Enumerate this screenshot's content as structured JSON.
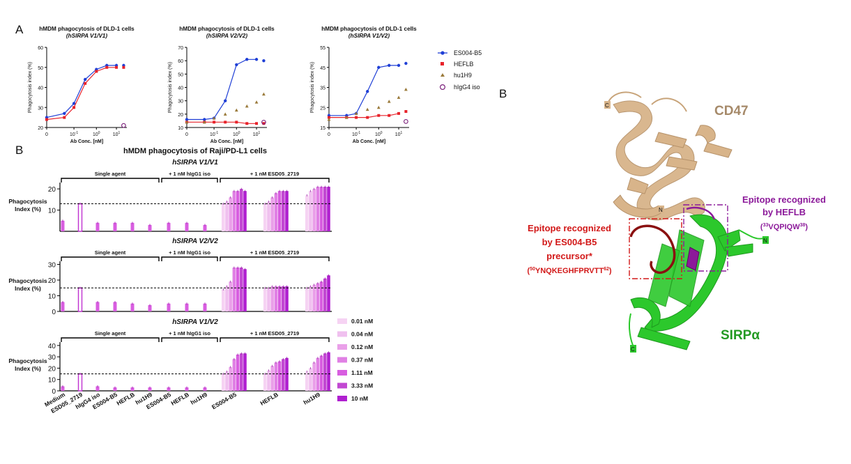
{
  "figure": {
    "panel_a_letter": "A",
    "panel_b_letter": "B",
    "panel_b2_letter": "B"
  },
  "curve_panels": [
    {
      "title": "hMDM phagocytosis of DLD-1 cells",
      "subtitle": "(hSIRPA V1/V1)",
      "ylabel": "Phagocytosis index (%)",
      "xlabel": "Ab Conc. [nM]",
      "yticks": [
        20,
        30,
        40,
        50,
        60
      ],
      "ylim": [
        20,
        60
      ]
    },
    {
      "title": "hMDM phagocytosis of DLD-1 cells",
      "subtitle": "(hSIRPA V2/V2)",
      "ylabel": "Phagocytosis index (%)",
      "xlabel": "Ab Conc. [nM]",
      "yticks": [
        10,
        20,
        30,
        40,
        50,
        60,
        70
      ],
      "ylim": [
        10,
        70
      ]
    },
    {
      "title": "hMDM phagocytosis of DLD-1 cells",
      "subtitle": "(hSIRPA V1/V2)",
      "ylabel": "Phagocytosis index (%)",
      "xlabel": "Ab Conc. [nM]",
      "yticks": [
        15,
        25,
        35,
        45,
        55
      ],
      "ylim": [
        15,
        55
      ]
    }
  ],
  "curve_xticks": [
    "0",
    "10-1",
    "100",
    "101"
  ],
  "curve_legend": [
    "ES004-B5",
    "HEFLB",
    "hu1H9",
    "hIgG4 iso"
  ],
  "bar_section": {
    "title": "hMDM phagocytosis of Raji/PD-L1 cells",
    "ylabel_line1": "Phagocytosis",
    "ylabel_line2": "Index (%)",
    "bracket_single": "Single agent",
    "bracket_hig": "+ 1 nM hIgG1 iso",
    "bracket_esd": "+ 1 nM ESD05_2719",
    "xlabels": [
      "Medium",
      "ESD05_2719",
      "hIgG4 iso",
      "ES004-B5",
      "HEFLB",
      "hu1H9",
      "ES004-B5",
      "HEFLB",
      "hu1H9",
      "ES004-B5",
      "HEFLB",
      "hu1H9"
    ],
    "legend": [
      "0.01 nM",
      "0.04 nM",
      "0.12 nM",
      "0.37 nM",
      "1.11 nM",
      "3.33 nM",
      "10 nM"
    ]
  },
  "structure": {
    "cd47_label": "CD47",
    "sirpa_label": "SIRPα",
    "heflb_epitope_line1": "Epitope recognized",
    "heflb_epitope_line2": "by HEFLB",
    "heflb_epitope_seq_pre": "(",
    "heflb_epitope_sup1": "33",
    "heflb_epitope_seq": "VQPIQW",
    "heflb_epitope_sup2": "38",
    "heflb_epitope_seq_post": ")",
    "es004_epitope_line1": "Epitope recognized",
    "es004_epitope_line2": "by ES004-B5",
    "es004_epitope_line3": "precursor*",
    "es004_seq_pre": "(",
    "es004_sup1": "50",
    "es004_seq": "YNQKEGHFPRVTT",
    "es004_sup2": "62",
    "es004_seq_post": ")",
    "term_c_cd47": "C",
    "term_n_cd47": "N",
    "term_n_sirpa": "N",
    "term_c_sirpa": "C"
  },
  "colors": {
    "es004": "#1f3fd6",
    "heflb": "#e8222a",
    "hu1h9": "#9a7a3a",
    "hig4": "#7a1f7a",
    "cd47": "#d8b48a",
    "sirpa": "#2cc82c",
    "epitope_es": "#d21818",
    "epitope_he": "#8c1a9a",
    "bars": [
      "#f6d3f3",
      "#f0c0ef",
      "#eaa0e9",
      "#e080e4",
      "#d85ee0",
      "#c248d2",
      "#b020d0"
    ]
  },
  "chart_data": [
    {
      "type": "line",
      "title": "hMDM phagocytosis of DLD-1 cells (hSIRPA V1/V1)",
      "xlabel": "Ab Conc. [nM]",
      "ylabel": "Phagocytosis index (%)",
      "ylim": [
        20,
        60
      ],
      "x": [
        0,
        0.041,
        0.12,
        0.37,
        1.11,
        3.33,
        10,
        20
      ],
      "series": [
        {
          "name": "ES004-B5",
          "values": [
            25,
            27,
            32,
            44,
            49,
            51,
            51,
            51
          ]
        },
        {
          "name": "HEFLB",
          "values": [
            24,
            25,
            30,
            42,
            48,
            50,
            50,
            50
          ]
        },
        {
          "name": "hIgG4 iso",
          "values": [
            null,
            null,
            null,
            null,
            null,
            null,
            null,
            21
          ]
        }
      ]
    },
    {
      "type": "line",
      "title": "hMDM phagocytosis of DLD-1 cells (hSIRPA V2/V2)",
      "xlabel": "Ab Conc. [nM]",
      "ylabel": "Phagocytosis index (%)",
      "ylim": [
        10,
        70
      ],
      "x": [
        0,
        0.041,
        0.12,
        0.37,
        1.11,
        3.33,
        10,
        20
      ],
      "series": [
        {
          "name": "ES004-B5",
          "values": [
            16,
            16,
            17,
            30,
            57,
            61,
            61,
            60
          ]
        },
        {
          "name": "HEFLB",
          "values": [
            14,
            14,
            14,
            14,
            14,
            13,
            13,
            13
          ]
        },
        {
          "name": "hu1H9",
          "values": [
            14,
            14,
            17,
            20,
            23,
            26,
            29,
            35
          ]
        },
        {
          "name": "hIgG4 iso",
          "values": [
            null,
            null,
            null,
            null,
            null,
            null,
            null,
            14
          ]
        }
      ]
    },
    {
      "type": "line",
      "title": "hMDM phagocytosis of DLD-1 cells (hSIRPA V1/V2)",
      "xlabel": "Ab Conc. [nM]",
      "ylabel": "Phagocytosis index (%)",
      "ylim": [
        15,
        55
      ],
      "x": [
        0,
        0.041,
        0.12,
        0.37,
        1.11,
        3.33,
        10,
        20
      ],
      "series": [
        {
          "name": "ES004-B5",
          "values": [
            21,
            21,
            22,
            33,
            45,
            46,
            46,
            47
          ]
        },
        {
          "name": "HEFLB",
          "values": [
            20,
            20,
            20,
            20,
            21,
            21,
            22,
            23
          ]
        },
        {
          "name": "hu1H9",
          "values": [
            19,
            20,
            22,
            24,
            25,
            28,
            30,
            34
          ]
        },
        {
          "name": "hIgG4 iso",
          "values": [
            null,
            null,
            null,
            null,
            null,
            null,
            null,
            18
          ]
        }
      ]
    },
    {
      "type": "bar",
      "title": "hMDM phagocytosis of Raji/PD-L1 cells — hSIRPA V1/V1",
      "ylabel": "Phagocytosis Index (%)",
      "ylim": [
        0,
        23
      ],
      "yticks": [
        10,
        20
      ],
      "threshold": 13,
      "subtitle": "hSIRPA V1/V1",
      "single_values": [
        5,
        13,
        4,
        4,
        4,
        3,
        4,
        4,
        3
      ],
      "combo_groups": [
        [
          13,
          14,
          16,
          19,
          19,
          20,
          19
        ],
        [
          13,
          14,
          16,
          18,
          19,
          19,
          19
        ],
        [
          17,
          19,
          20,
          21,
          21,
          21,
          21
        ]
      ]
    },
    {
      "type": "bar",
      "title": "hMDM phagocytosis of Raji/PD-L1 cells — hSIRPA V2/V2",
      "ylabel": "Phagocytosis Index (%)",
      "ylim": [
        0,
        32
      ],
      "yticks": [
        0,
        10,
        20,
        30
      ],
      "threshold": 15,
      "subtitle": "hSIRPA V2/V2",
      "single_values": [
        6,
        15,
        6,
        6,
        5,
        4,
        5,
        5,
        5
      ],
      "combo_groups": [
        [
          14,
          16,
          19,
          28,
          28,
          28,
          27
        ],
        [
          15,
          15,
          16,
          16,
          16,
          16,
          16
        ],
        [
          15,
          16,
          17,
          18,
          19,
          21,
          23
        ]
      ]
    },
    {
      "type": "bar",
      "title": "hMDM phagocytosis of Raji/PD-L1 cells — hSIRPA V1/V2",
      "ylabel": "Phagocytosis Index (%)",
      "ylim": [
        0,
        43
      ],
      "yticks": [
        0,
        10,
        20,
        30,
        40
      ],
      "threshold": 15,
      "subtitle": "hSIRPA V1/V2",
      "single_values": [
        4,
        15,
        4,
        3,
        3,
        3,
        3,
        3,
        3
      ],
      "combo_groups": [
        [
          15,
          17,
          21,
          28,
          32,
          33,
          33
        ],
        [
          15,
          18,
          22,
          25,
          26,
          28,
          29
        ],
        [
          17,
          20,
          25,
          29,
          31,
          33,
          34
        ]
      ]
    }
  ]
}
